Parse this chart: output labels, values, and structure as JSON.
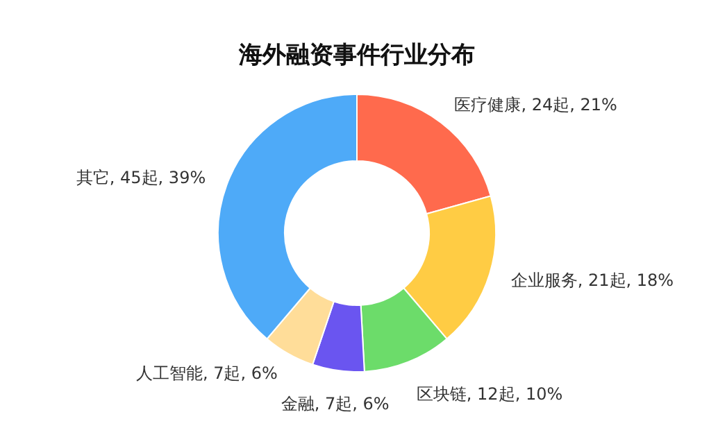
{
  "chart_data": {
    "type": "donut",
    "title": "海外融资事件行业分布",
    "categories": [
      "医疗健康",
      "企业服务",
      "区块链",
      "金融",
      "人工智能",
      "其它"
    ],
    "values": [
      24,
      21,
      12,
      7,
      7,
      45
    ],
    "value_labels": [
      "24起, 21%",
      "21起, 18%",
      "12起, 10%",
      "7起, 6%",
      "7起, 6%",
      "45起, 39%"
    ],
    "colors": [
      "#ff6a4d",
      "#ffcc44",
      "#6cdc6a",
      "#6a55f0",
      "#ffdd99",
      "#4eaaf8"
    ],
    "legend": false
  }
}
